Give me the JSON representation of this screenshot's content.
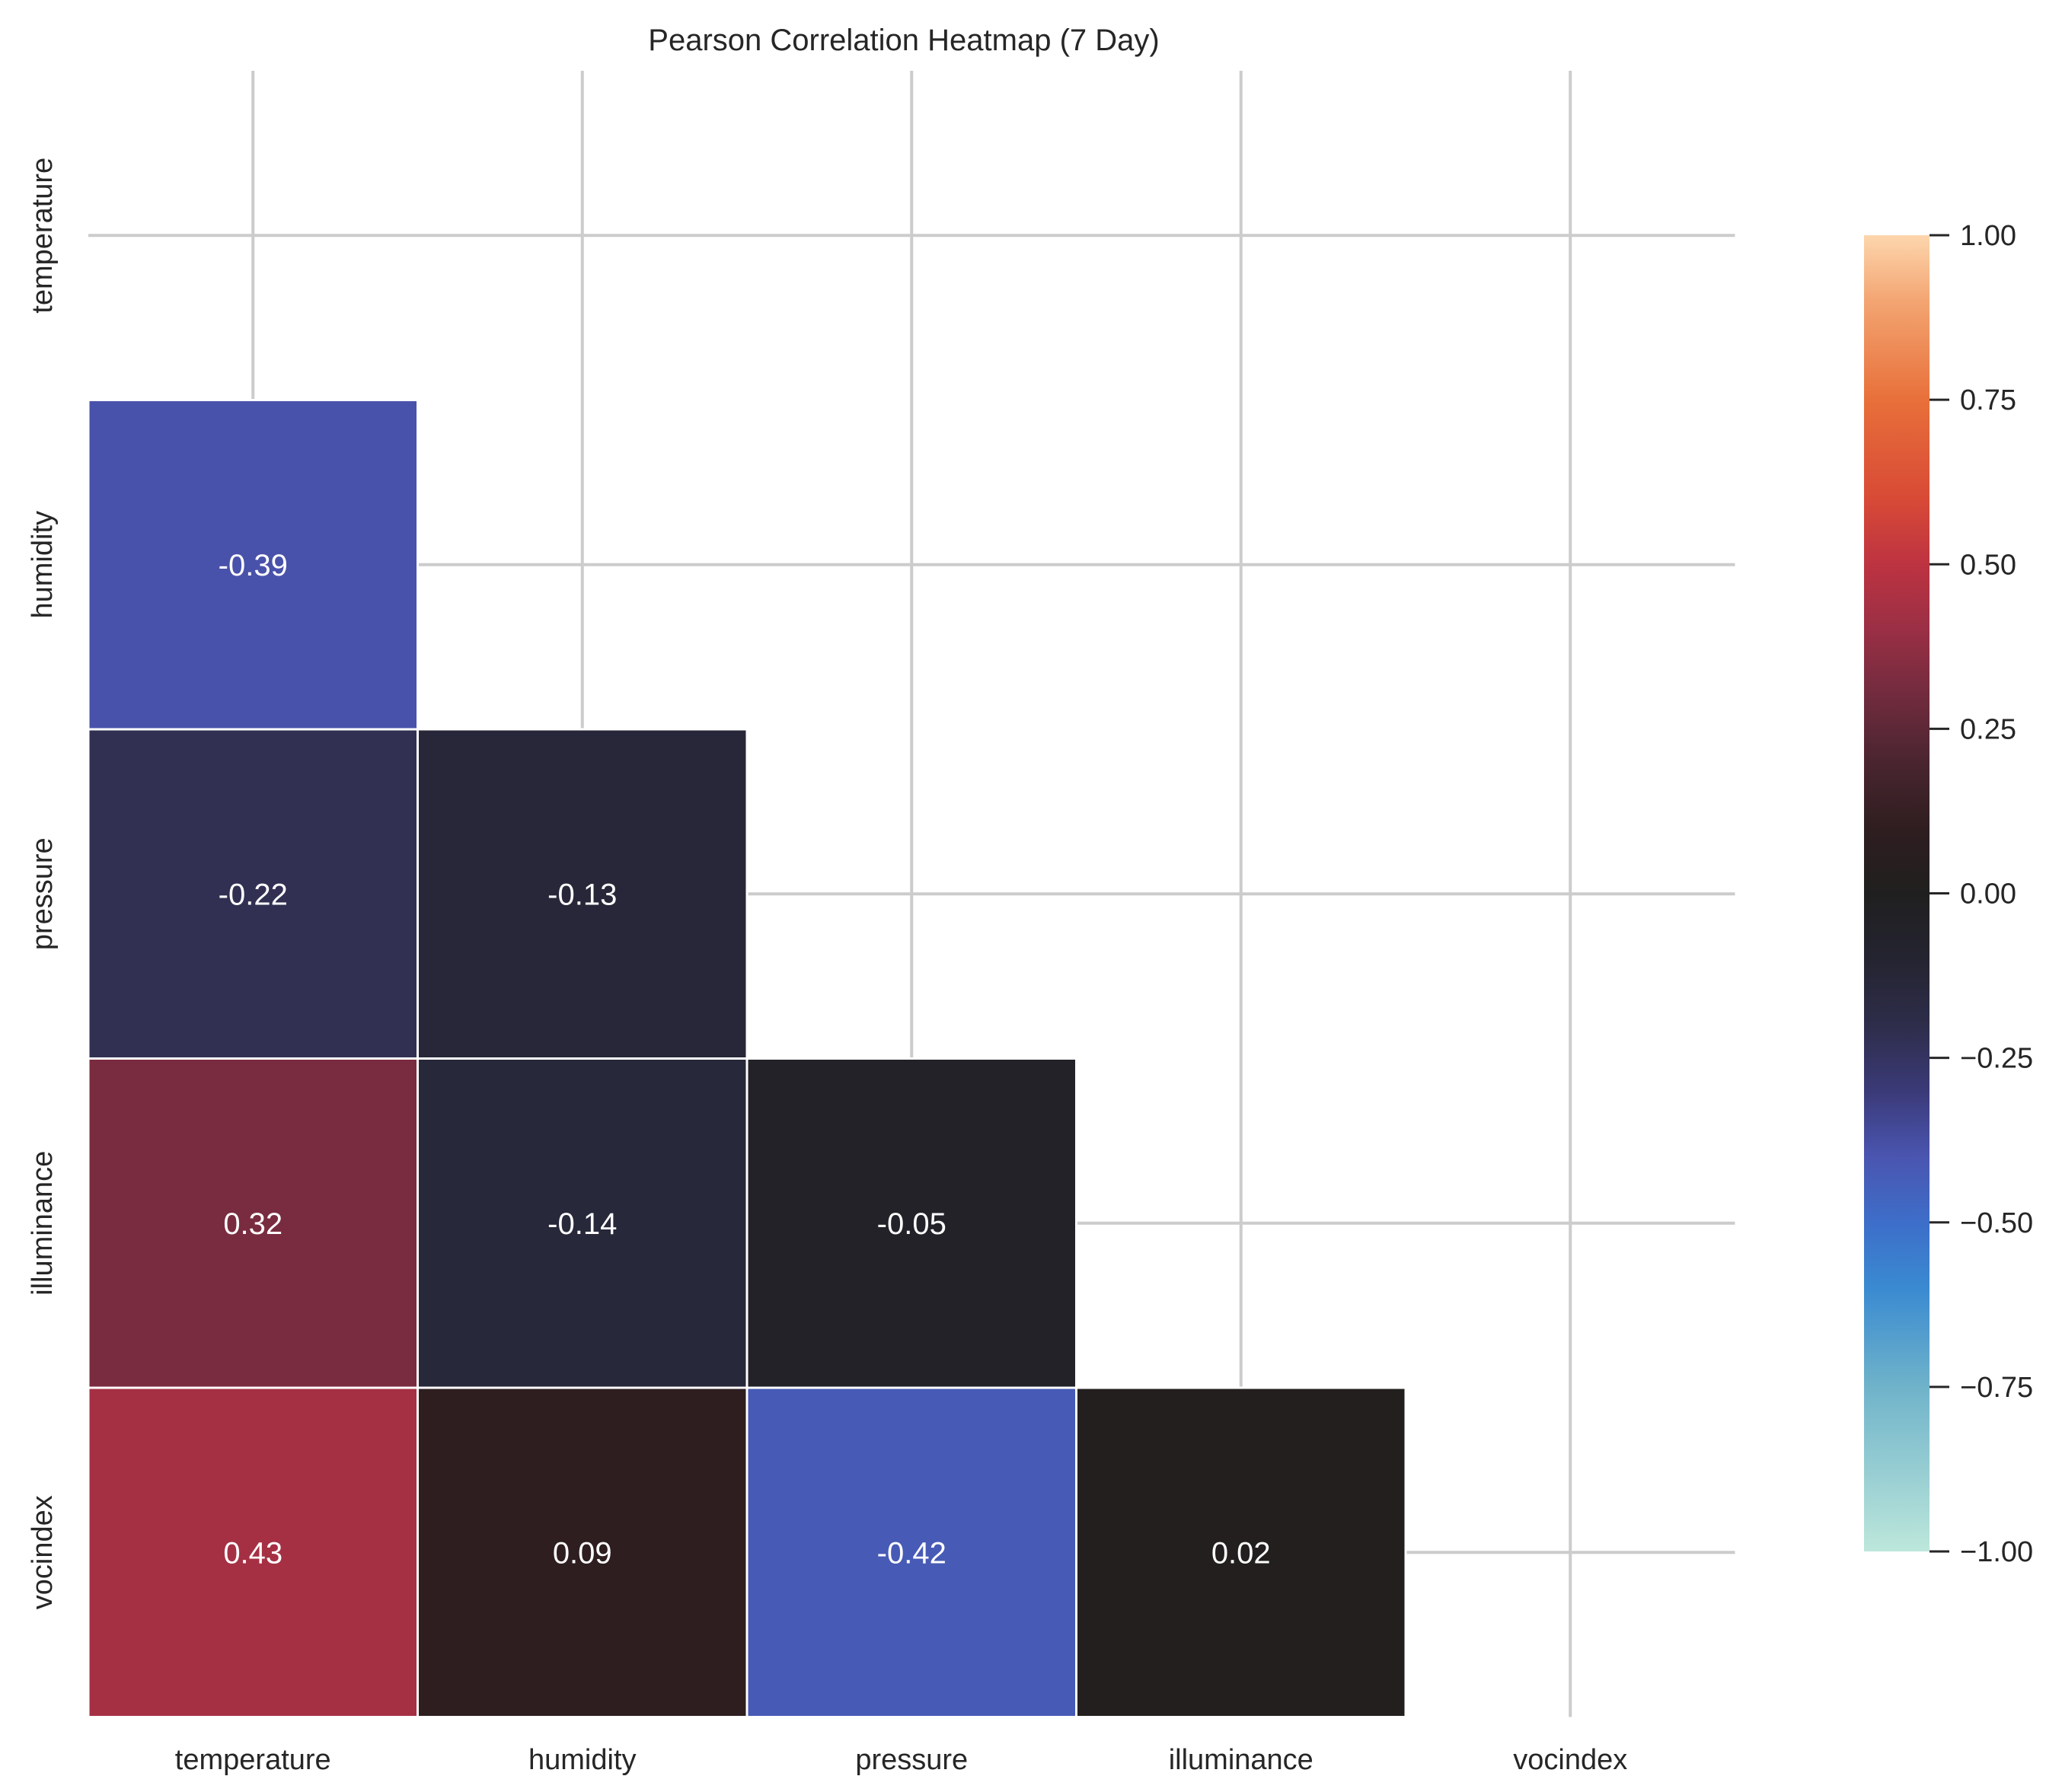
{
  "chart_data": {
    "type": "heatmap",
    "title": "Pearson Correlation Heatmap (7 Day)",
    "xlabel": "",
    "ylabel": "",
    "variables": [
      "temperature",
      "humidity",
      "pressure",
      "illuminance",
      "vocindex"
    ],
    "x_tick_labels": [
      "temperature",
      "humidity",
      "pressure",
      "illuminance",
      "vocindex"
    ],
    "y_tick_labels": [
      "temperature",
      "humidity",
      "pressure",
      "illuminance",
      "vocindex"
    ],
    "mask": "upper-triangle-including-diagonal",
    "cells": [
      {
        "row": "humidity",
        "col": "temperature",
        "value": -0.39,
        "label": "-0.39"
      },
      {
        "row": "pressure",
        "col": "temperature",
        "value": -0.22,
        "label": "-0.22"
      },
      {
        "row": "pressure",
        "col": "humidity",
        "value": -0.13,
        "label": "-0.13"
      },
      {
        "row": "illuminance",
        "col": "temperature",
        "value": 0.32,
        "label": "0.32"
      },
      {
        "row": "illuminance",
        "col": "humidity",
        "value": -0.14,
        "label": "-0.14"
      },
      {
        "row": "illuminance",
        "col": "pressure",
        "value": -0.05,
        "label": "-0.05"
      },
      {
        "row": "vocindex",
        "col": "temperature",
        "value": 0.43,
        "label": "0.43"
      },
      {
        "row": "vocindex",
        "col": "humidity",
        "value": 0.09,
        "label": "0.09"
      },
      {
        "row": "vocindex",
        "col": "pressure",
        "value": -0.42,
        "label": "-0.42"
      },
      {
        "row": "vocindex",
        "col": "illuminance",
        "value": 0.02,
        "label": "0.02"
      }
    ],
    "colorbar": {
      "vmin": -1.0,
      "vmax": 1.0,
      "center": 0.0,
      "colormap": "icefire",
      "ticks": [
        1.0,
        0.75,
        0.5,
        0.25,
        0.0,
        -0.25,
        -0.5,
        -0.75,
        -1.0
      ],
      "tick_labels": [
        "1.00",
        "0.75",
        "0.50",
        "0.25",
        "0.00",
        "−0.25",
        "−0.50",
        "−0.75",
        "−1.00"
      ],
      "stops": [
        {
          "value": -1.0,
          "color": "#bde7db"
        },
        {
          "value": -0.75,
          "color": "#6fb3ca"
        },
        {
          "value": -0.6,
          "color": "#3a8ad1"
        },
        {
          "value": -0.5,
          "color": "#3d6ec9"
        },
        {
          "value": -0.4,
          "color": "#4a55b0"
        },
        {
          "value": -0.3,
          "color": "#3b3a78"
        },
        {
          "value": -0.2,
          "color": "#2e2d4a"
        },
        {
          "value": -0.1,
          "color": "#242431"
        },
        {
          "value": 0.0,
          "color": "#201f1f"
        },
        {
          "value": 0.1,
          "color": "#2f1e20"
        },
        {
          "value": 0.2,
          "color": "#4a2530"
        },
        {
          "value": 0.3,
          "color": "#712b3e"
        },
        {
          "value": 0.4,
          "color": "#9a2f45"
        },
        {
          "value": 0.5,
          "color": "#bd3341"
        },
        {
          "value": 0.6,
          "color": "#d84a36"
        },
        {
          "value": 0.75,
          "color": "#e8703a"
        },
        {
          "value": 0.9,
          "color": "#f3a572"
        },
        {
          "value": 1.0,
          "color": "#fdd6ad"
        }
      ]
    },
    "grid": true,
    "annotations": "values in cells, 2 decimals"
  }
}
